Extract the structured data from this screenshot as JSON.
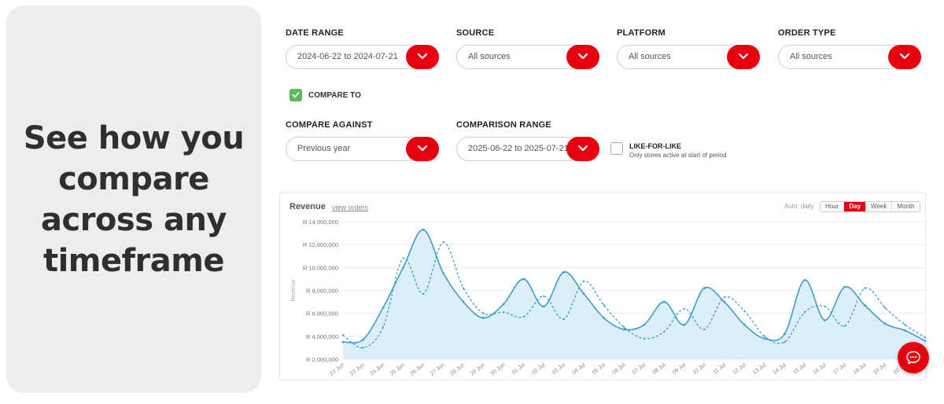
{
  "hero": {
    "headline": "See how you compare across any timeframe"
  },
  "filters": {
    "date_range": {
      "label": "DATE RANGE",
      "value": "2024-06-22 to 2024-07-21"
    },
    "source": {
      "label": "SOURCE",
      "value": "All sources"
    },
    "platform": {
      "label": "PLATFORM",
      "value": "All sources"
    },
    "order_type": {
      "label": "ORDER TYPE",
      "value": "All sources"
    },
    "compare_to": {
      "label": "COMPARE TO",
      "checked": true
    },
    "compare_against": {
      "label": "COMPARE AGAINST",
      "value": "Previous year"
    },
    "comparison_range": {
      "label": "COMPARISON RANGE",
      "value": "2025-06-22 to 2025-07-21"
    },
    "like_for_like": {
      "label": "LIKE-FOR-LIKE",
      "sublabel": "Only stores active at start of period",
      "checked": false
    }
  },
  "chart_card": {
    "title": "Revenue",
    "link": "view orders",
    "auto_label": "Auto: daily",
    "granularity": [
      "Hour",
      "Day",
      "Week",
      "Month"
    ],
    "active_granularity": "Day"
  },
  "colors": {
    "accent": "#e8000f",
    "check": "#5cb85c",
    "series": "#3a9fc9",
    "area": "#d6ebf6"
  },
  "chart_data": {
    "type": "area",
    "title": "Revenue",
    "ylabel": "Revenue",
    "xlabel": "",
    "ylim": [
      2000000,
      14000000
    ],
    "yticks": [
      2000000,
      4000000,
      6000000,
      8000000,
      10000000,
      12000000,
      14000000
    ],
    "ytick_labels": [
      "R 2,000,000",
      "R 4,000,000",
      "R 6,000,000",
      "R 8,000,000",
      "R 10,000,000",
      "R 12,000,000",
      "R 14,000,000"
    ],
    "categories": [
      "22 Jun",
      "23 Jun",
      "24 Jun",
      "25 Jun",
      "26 Jun",
      "27 Jun",
      "28 Jun",
      "29 Jun",
      "30 Jun",
      "01 Jul",
      "02 Jul",
      "03 Jul",
      "04 Jul",
      "05 Jul",
      "06 Jul",
      "07 Jul",
      "08 Jul",
      "09 Jul",
      "10 Jul",
      "11 Jul",
      "12 Jul",
      "13 Jul",
      "14 Jul",
      "15 Jul",
      "16 Jul",
      "17 Jul",
      "18 Jul",
      "19 Jul",
      "20 Jul",
      "21 Jul"
    ],
    "series": [
      {
        "style": "solid-area",
        "values": [
          3500000,
          3700000,
          6500000,
          10000000,
          13300000,
          9500000,
          7000000,
          5600000,
          6800000,
          9000000,
          6600000,
          9600000,
          7700000,
          5600000,
          4600000,
          5000000,
          7000000,
          5000000,
          8200000,
          7000000,
          5000000,
          3800000,
          4200000,
          8900000,
          5400000,
          8300000,
          6700000,
          5100000,
          4500000,
          3600000
        ]
      },
      {
        "style": "dashed",
        "values": [
          4100000,
          3000000,
          4800000,
          10800000,
          7700000,
          12200000,
          8200000,
          6000000,
          6100000,
          5700000,
          7500000,
          5500000,
          8800000,
          6700000,
          4800000,
          3800000,
          4400000,
          6400000,
          4600000,
          7400000,
          6200000,
          4000000,
          3500000,
          6100000,
          6600000,
          4900000,
          8200000,
          6500000,
          5000000,
          3900000
        ]
      }
    ],
    "grid": true,
    "legend": "none"
  }
}
